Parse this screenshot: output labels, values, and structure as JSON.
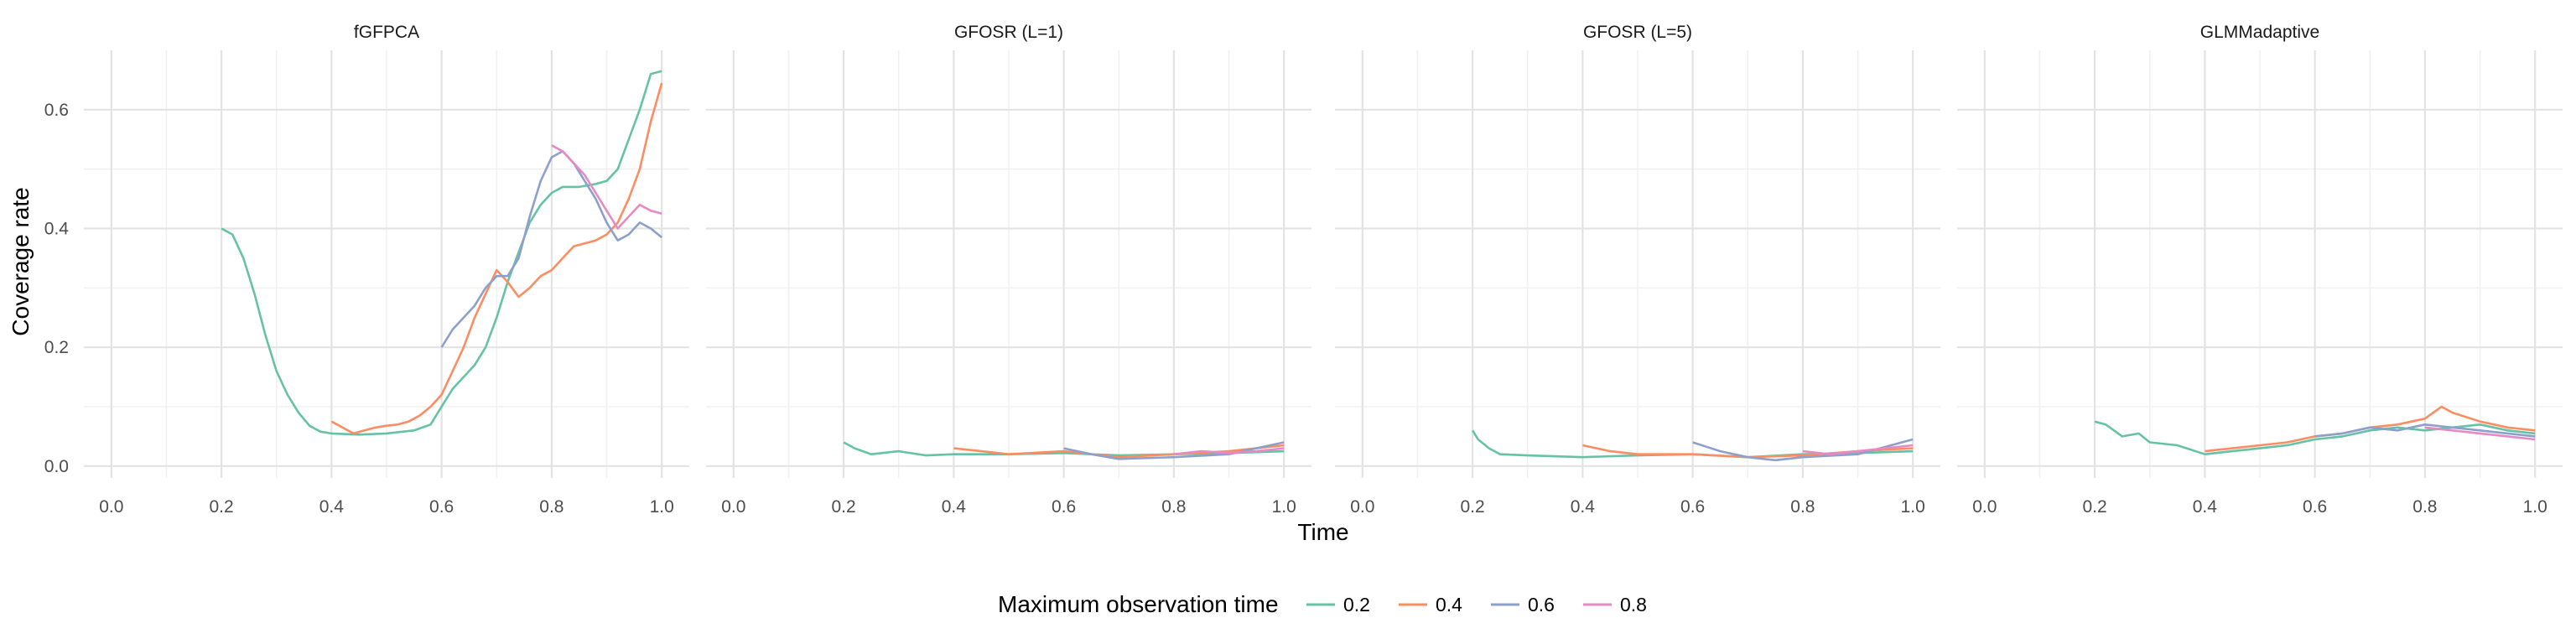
{
  "chart_data": {
    "type": "line",
    "xlabel": "Time",
    "ylabel": "Coverage rate",
    "xlim": [
      -0.05,
      1.05
    ],
    "ylim": [
      -0.02,
      0.7
    ],
    "x_ticks": [
      "0.0",
      "0.2",
      "0.4",
      "0.6",
      "0.8",
      "1.0"
    ],
    "y_ticks": [
      "0.0",
      "0.2",
      "0.4",
      "0.6"
    ],
    "grid": true,
    "legend": {
      "title": "Maximum observation time",
      "position": "bottom",
      "items": [
        {
          "label": "0.2",
          "color": "#66c2a5"
        },
        {
          "label": "0.4",
          "color": "#fc8d62"
        },
        {
          "label": "0.6",
          "color": "#8da0cb"
        },
        {
          "label": "0.8",
          "color": "#e78ac3"
        }
      ]
    },
    "panels": [
      {
        "title": "fGFPCA",
        "series": [
          {
            "name": "0.2",
            "color": "#66c2a5",
            "points": [
              [
                0.2,
                0.4
              ],
              [
                0.22,
                0.39
              ],
              [
                0.24,
                0.35
              ],
              [
                0.26,
                0.29
              ],
              [
                0.28,
                0.22
              ],
              [
                0.3,
                0.16
              ],
              [
                0.32,
                0.12
              ],
              [
                0.34,
                0.09
              ],
              [
                0.36,
                0.068
              ],
              [
                0.38,
                0.058
              ],
              [
                0.4,
                0.055
              ],
              [
                0.45,
                0.053
              ],
              [
                0.5,
                0.055
              ],
              [
                0.55,
                0.06
              ],
              [
                0.58,
                0.07
              ],
              [
                0.6,
                0.1
              ],
              [
                0.62,
                0.13
              ],
              [
                0.64,
                0.15
              ],
              [
                0.66,
                0.17
              ],
              [
                0.68,
                0.2
              ],
              [
                0.7,
                0.25
              ],
              [
                0.72,
                0.31
              ],
              [
                0.74,
                0.36
              ],
              [
                0.76,
                0.41
              ],
              [
                0.78,
                0.44
              ],
              [
                0.8,
                0.46
              ],
              [
                0.82,
                0.47
              ],
              [
                0.85,
                0.47
              ],
              [
                0.88,
                0.475
              ],
              [
                0.9,
                0.48
              ],
              [
                0.92,
                0.5
              ],
              [
                0.94,
                0.55
              ],
              [
                0.96,
                0.6
              ],
              [
                0.98,
                0.66
              ],
              [
                1.0,
                0.665
              ]
            ]
          },
          {
            "name": "0.4",
            "color": "#fc8d62",
            "points": [
              [
                0.4,
                0.075
              ],
              [
                0.42,
                0.065
              ],
              [
                0.44,
                0.055
              ],
              [
                0.46,
                0.06
              ],
              [
                0.48,
                0.065
              ],
              [
                0.5,
                0.068
              ],
              [
                0.52,
                0.07
              ],
              [
                0.54,
                0.075
              ],
              [
                0.56,
                0.085
              ],
              [
                0.58,
                0.1
              ],
              [
                0.6,
                0.12
              ],
              [
                0.62,
                0.16
              ],
              [
                0.64,
                0.2
              ],
              [
                0.66,
                0.25
              ],
              [
                0.68,
                0.29
              ],
              [
                0.7,
                0.33
              ],
              [
                0.72,
                0.31
              ],
              [
                0.74,
                0.285
              ],
              [
                0.76,
                0.3
              ],
              [
                0.78,
                0.32
              ],
              [
                0.8,
                0.33
              ],
              [
                0.82,
                0.35
              ],
              [
                0.84,
                0.37
              ],
              [
                0.86,
                0.375
              ],
              [
                0.88,
                0.38
              ],
              [
                0.9,
                0.39
              ],
              [
                0.92,
                0.41
              ],
              [
                0.94,
                0.45
              ],
              [
                0.96,
                0.5
              ],
              [
                0.98,
                0.58
              ],
              [
                1.0,
                0.645
              ]
            ]
          },
          {
            "name": "0.6",
            "color": "#8da0cb",
            "points": [
              [
                0.6,
                0.2
              ],
              [
                0.62,
                0.23
              ],
              [
                0.64,
                0.25
              ],
              [
                0.66,
                0.27
              ],
              [
                0.68,
                0.3
              ],
              [
                0.7,
                0.32
              ],
              [
                0.72,
                0.32
              ],
              [
                0.74,
                0.35
              ],
              [
                0.76,
                0.42
              ],
              [
                0.78,
                0.48
              ],
              [
                0.8,
                0.52
              ],
              [
                0.82,
                0.53
              ],
              [
                0.84,
                0.51
              ],
              [
                0.86,
                0.48
              ],
              [
                0.88,
                0.45
              ],
              [
                0.9,
                0.41
              ],
              [
                0.92,
                0.38
              ],
              [
                0.94,
                0.39
              ],
              [
                0.96,
                0.41
              ],
              [
                0.98,
                0.4
              ],
              [
                1.0,
                0.385
              ]
            ]
          },
          {
            "name": "0.8",
            "color": "#e78ac3",
            "points": [
              [
                0.8,
                0.54
              ],
              [
                0.82,
                0.53
              ],
              [
                0.84,
                0.51
              ],
              [
                0.86,
                0.49
              ],
              [
                0.88,
                0.46
              ],
              [
                0.9,
                0.43
              ],
              [
                0.92,
                0.4
              ],
              [
                0.94,
                0.42
              ],
              [
                0.96,
                0.44
              ],
              [
                0.98,
                0.43
              ],
              [
                1.0,
                0.425
              ]
            ]
          }
        ]
      },
      {
        "title": "GFOSR (L=1)",
        "series": [
          {
            "name": "0.2",
            "color": "#66c2a5",
            "points": [
              [
                0.2,
                0.04
              ],
              [
                0.22,
                0.03
              ],
              [
                0.25,
                0.02
              ],
              [
                0.3,
                0.025
              ],
              [
                0.35,
                0.018
              ],
              [
                0.4,
                0.02
              ],
              [
                0.5,
                0.02
              ],
              [
                0.6,
                0.022
              ],
              [
                0.7,
                0.018
              ],
              [
                0.8,
                0.02
              ],
              [
                0.9,
                0.022
              ],
              [
                1.0,
                0.025
              ]
            ]
          },
          {
            "name": "0.4",
            "color": "#fc8d62",
            "points": [
              [
                0.4,
                0.03
              ],
              [
                0.45,
                0.025
              ],
              [
                0.5,
                0.02
              ],
              [
                0.6,
                0.025
              ],
              [
                0.7,
                0.015
              ],
              [
                0.8,
                0.02
              ],
              [
                0.9,
                0.025
              ],
              [
                1.0,
                0.035
              ]
            ]
          },
          {
            "name": "0.6",
            "color": "#8da0cb",
            "points": [
              [
                0.6,
                0.03
              ],
              [
                0.65,
                0.02
              ],
              [
                0.7,
                0.012
              ],
              [
                0.8,
                0.015
              ],
              [
                0.9,
                0.02
              ],
              [
                1.0,
                0.04
              ]
            ]
          },
          {
            "name": "0.8",
            "color": "#e78ac3",
            "points": [
              [
                0.8,
                0.02
              ],
              [
                0.85,
                0.025
              ],
              [
                0.9,
                0.022
              ],
              [
                0.95,
                0.025
              ],
              [
                1.0,
                0.03
              ]
            ]
          }
        ]
      },
      {
        "title": "GFOSR (L=5)",
        "series": [
          {
            "name": "0.2",
            "color": "#66c2a5",
            "points": [
              [
                0.2,
                0.06
              ],
              [
                0.21,
                0.045
              ],
              [
                0.23,
                0.03
              ],
              [
                0.25,
                0.02
              ],
              [
                0.3,
                0.018
              ],
              [
                0.4,
                0.015
              ],
              [
                0.5,
                0.018
              ],
              [
                0.6,
                0.02
              ],
              [
                0.7,
                0.015
              ],
              [
                0.8,
                0.02
              ],
              [
                0.9,
                0.022
              ],
              [
                1.0,
                0.025
              ]
            ]
          },
          {
            "name": "0.4",
            "color": "#fc8d62",
            "points": [
              [
                0.4,
                0.035
              ],
              [
                0.45,
                0.025
              ],
              [
                0.5,
                0.02
              ],
              [
                0.6,
                0.02
              ],
              [
                0.7,
                0.015
              ],
              [
                0.8,
                0.018
              ],
              [
                0.9,
                0.025
              ],
              [
                1.0,
                0.03
              ]
            ]
          },
          {
            "name": "0.6",
            "color": "#8da0cb",
            "points": [
              [
                0.6,
                0.04
              ],
              [
                0.65,
                0.025
              ],
              [
                0.7,
                0.015
              ],
              [
                0.75,
                0.01
              ],
              [
                0.8,
                0.015
              ],
              [
                0.9,
                0.02
              ],
              [
                1.0,
                0.045
              ]
            ]
          },
          {
            "name": "0.8",
            "color": "#e78ac3",
            "points": [
              [
                0.8,
                0.025
              ],
              [
                0.85,
                0.02
              ],
              [
                0.9,
                0.025
              ],
              [
                0.95,
                0.03
              ],
              [
                1.0,
                0.035
              ]
            ]
          }
        ]
      },
      {
        "title": "GLMMadaptive",
        "series": [
          {
            "name": "0.2",
            "color": "#66c2a5",
            "points": [
              [
                0.2,
                0.075
              ],
              [
                0.22,
                0.07
              ],
              [
                0.25,
                0.05
              ],
              [
                0.28,
                0.055
              ],
              [
                0.3,
                0.04
              ],
              [
                0.35,
                0.035
              ],
              [
                0.4,
                0.02
              ],
              [
                0.45,
                0.025
              ],
              [
                0.5,
                0.03
              ],
              [
                0.55,
                0.035
              ],
              [
                0.6,
                0.045
              ],
              [
                0.65,
                0.05
              ],
              [
                0.7,
                0.06
              ],
              [
                0.75,
                0.065
              ],
              [
                0.8,
                0.06
              ],
              [
                0.85,
                0.065
              ],
              [
                0.9,
                0.07
              ],
              [
                0.95,
                0.06
              ],
              [
                1.0,
                0.055
              ]
            ]
          },
          {
            "name": "0.4",
            "color": "#fc8d62",
            "points": [
              [
                0.4,
                0.025
              ],
              [
                0.45,
                0.03
              ],
              [
                0.5,
                0.035
              ],
              [
                0.55,
                0.04
              ],
              [
                0.6,
                0.05
              ],
              [
                0.65,
                0.055
              ],
              [
                0.7,
                0.065
              ],
              [
                0.75,
                0.07
              ],
              [
                0.8,
                0.08
              ],
              [
                0.83,
                0.1
              ],
              [
                0.85,
                0.09
              ],
              [
                0.9,
                0.075
              ],
              [
                0.95,
                0.065
              ],
              [
                1.0,
                0.06
              ]
            ]
          },
          {
            "name": "0.6",
            "color": "#8da0cb",
            "points": [
              [
                0.6,
                0.05
              ],
              [
                0.65,
                0.055
              ],
              [
                0.7,
                0.065
              ],
              [
                0.75,
                0.06
              ],
              [
                0.8,
                0.07
              ],
              [
                0.85,
                0.065
              ],
              [
                0.9,
                0.06
              ],
              [
                0.95,
                0.055
              ],
              [
                1.0,
                0.05
              ]
            ]
          },
          {
            "name": "0.8",
            "color": "#e78ac3",
            "points": [
              [
                0.8,
                0.065
              ],
              [
                0.85,
                0.06
              ],
              [
                0.9,
                0.055
              ],
              [
                0.95,
                0.05
              ],
              [
                1.0,
                0.045
              ]
            ]
          }
        ]
      }
    ]
  }
}
